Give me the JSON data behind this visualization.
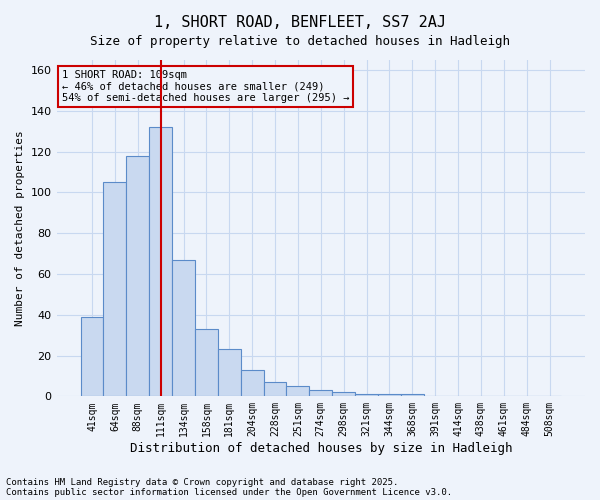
{
  "title1": "1, SHORT ROAD, BENFLEET, SS7 2AJ",
  "title2": "Size of property relative to detached houses in Hadleigh",
  "xlabel": "Distribution of detached houses by size in Hadleigh",
  "ylabel": "Number of detached properties",
  "categories": [
    "41sqm",
    "64sqm",
    "88sqm",
    "111sqm",
    "134sqm",
    "158sqm",
    "181sqm",
    "204sqm",
    "228sqm",
    "251sqm",
    "274sqm",
    "298sqm",
    "321sqm",
    "344sqm",
    "368sqm",
    "391sqm",
    "414sqm",
    "438sqm",
    "461sqm",
    "484sqm",
    "508sqm"
  ],
  "values": [
    39,
    105,
    118,
    132,
    67,
    33,
    23,
    13,
    7,
    5,
    3,
    2,
    1,
    1,
    1,
    0,
    0,
    0,
    0,
    0,
    0
  ],
  "bar_color": "#c9d9f0",
  "bar_edge_color": "#5b8bc9",
  "grid_color": "#c8d8f0",
  "background_color": "#eef3fb",
  "property_line_x": 3.5,
  "property_line_color": "#cc0000",
  "annotation_text": "1 SHORT ROAD: 109sqm\n← 46% of detached houses are smaller (249)\n54% of semi-detached houses are larger (295) →",
  "annotation_box_color": "#cc0000",
  "annotation_text_color": "#000000",
  "footer1": "Contains HM Land Registry data © Crown copyright and database right 2025.",
  "footer2": "Contains public sector information licensed under the Open Government Licence v3.0.",
  "ylim": [
    0,
    165
  ],
  "yticks": [
    0,
    20,
    40,
    60,
    80,
    100,
    120,
    140,
    160
  ]
}
